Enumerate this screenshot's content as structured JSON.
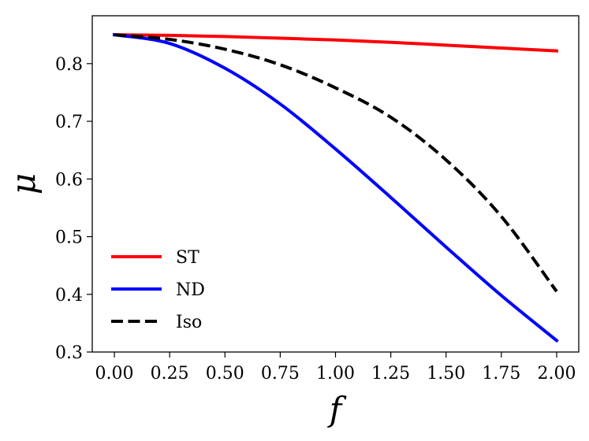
{
  "chart_data": {
    "type": "line",
    "title": "",
    "xlabel": "f",
    "ylabel": "μ",
    "xlim": [
      -0.1,
      2.1
    ],
    "ylim": [
      0.3,
      0.883
    ],
    "xticks": [
      0.0,
      0.25,
      0.5,
      0.75,
      1.0,
      1.25,
      1.5,
      1.75,
      2.0
    ],
    "xtick_labels": [
      "0.00",
      "0.25",
      "0.50",
      "0.75",
      "1.00",
      "1.25",
      "1.50",
      "1.75",
      "2.00"
    ],
    "yticks": [
      0.3,
      0.4,
      0.5,
      0.6,
      0.7,
      0.8
    ],
    "ytick_labels": [
      "0.3",
      "0.4",
      "0.5",
      "0.6",
      "0.7",
      "0.8"
    ],
    "grid": false,
    "legend_position": "lower-left",
    "x": [
      0.0,
      0.25,
      0.5,
      0.75,
      1.0,
      1.25,
      1.5,
      1.75,
      2.0
    ],
    "series": [
      {
        "name": "ST",
        "color": "#ff0000",
        "dash": "solid",
        "values": [
          0.85,
          0.849,
          0.847,
          0.844,
          0.841,
          0.837,
          0.832,
          0.827,
          0.822
        ]
      },
      {
        "name": "ND",
        "color": "#0000ff",
        "dash": "solid",
        "values": [
          0.85,
          0.835,
          0.792,
          0.73,
          0.652,
          0.568,
          0.482,
          0.398,
          0.32
        ]
      },
      {
        "name": "Iso",
        "color": "#000000",
        "dash": "dashed",
        "values": [
          0.85,
          0.842,
          0.825,
          0.798,
          0.758,
          0.707,
          0.633,
          0.535,
          0.405
        ]
      }
    ]
  }
}
